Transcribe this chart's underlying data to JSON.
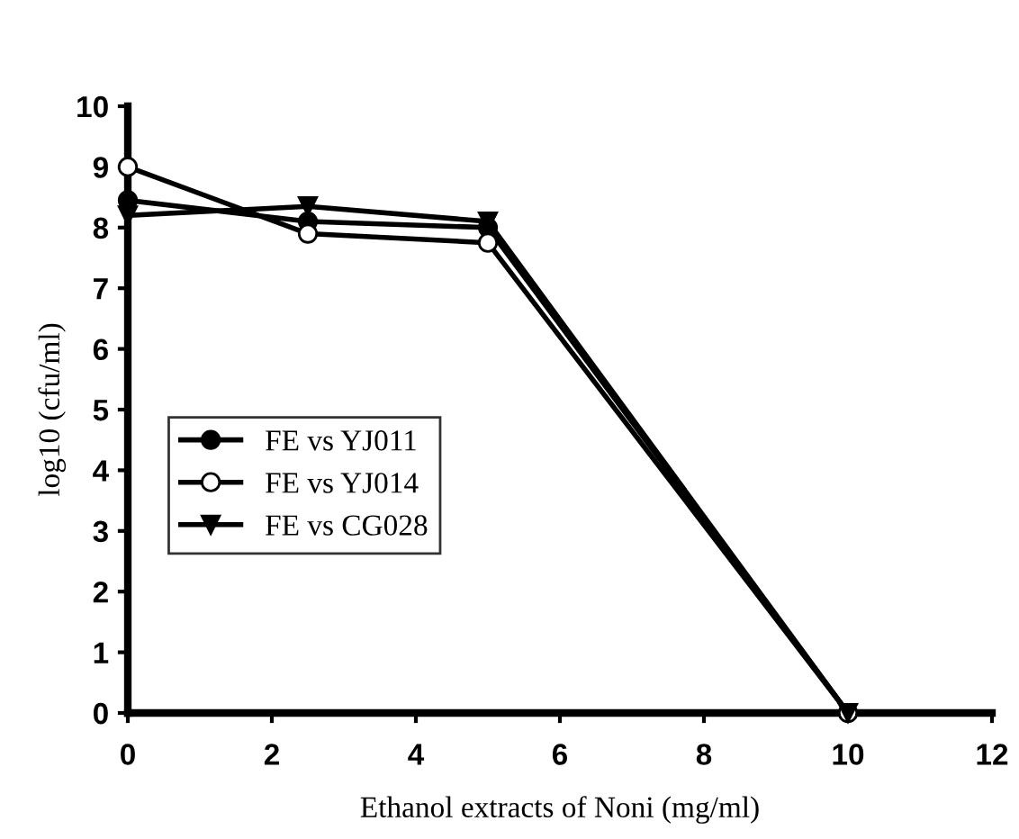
{
  "chart_data": {
    "type": "line",
    "xlabel": "Ethanol extracts of Noni (mg/ml)",
    "ylabel": "log10 (cfu/ml)",
    "xlim": [
      0,
      12
    ],
    "xticks": [
      0,
      2,
      4,
      6,
      8,
      10,
      12
    ],
    "ylim": [
      0,
      10
    ],
    "yticks": [
      0,
      1,
      2,
      3,
      4,
      5,
      6,
      7,
      8,
      9,
      10
    ],
    "grid": false,
    "legend": "center left",
    "line_style": "solid",
    "series": [
      {
        "name": "FE vs YJ011",
        "color": "#000000",
        "marker": "circle",
        "x": [
          0,
          2.5,
          5,
          10
        ],
        "values": [
          8.45,
          8.1,
          8.0,
          0
        ]
      },
      {
        "name": "FE vs YJ014",
        "color": "#000000",
        "marker": "circle",
        "x": [
          0,
          2.5,
          5,
          10
        ],
        "values": [
          9.0,
          7.9,
          7.75,
          0
        ]
      },
      {
        "name": "FE vs CG028",
        "color": "#000000",
        "marker": "triangle",
        "x": [
          0,
          2.5,
          5,
          10
        ],
        "values": [
          8.2,
          8.35,
          8.1,
          0
        ]
      }
    ]
  }
}
